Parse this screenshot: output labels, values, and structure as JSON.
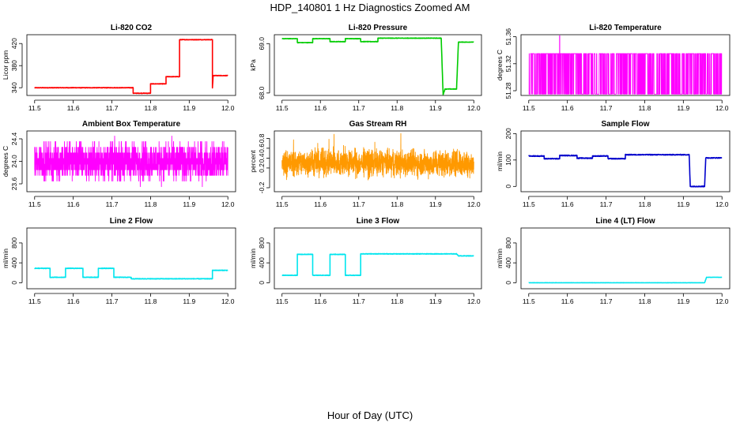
{
  "figure": {
    "title": "HDP_140801  1 Hz Diagnostics Zoomed AM",
    "xlabel": "Hour of Day (UTC)"
  },
  "chart_data": [
    {
      "type": "line",
      "title": "Li-820 CO2",
      "ylabel": "Licor ppm",
      "color": "#ff0000",
      "xlim": [
        11.48,
        12.02
      ],
      "xticks": [
        "11.5",
        "11.6",
        "11.7",
        "11.8",
        "11.9",
        "12.0"
      ],
      "ylim": [
        326,
        436
      ],
      "yticks": [
        "340",
        "380",
        "420"
      ],
      "noise": 0.4,
      "series": [
        {
          "x": 11.5,
          "y": 340
        },
        {
          "x": 11.755,
          "y": 340
        },
        {
          "x": 11.755,
          "y": 330
        },
        {
          "x": 11.8,
          "y": 330
        },
        {
          "x": 11.8,
          "y": 347
        },
        {
          "x": 11.84,
          "y": 347
        },
        {
          "x": 11.84,
          "y": 360
        },
        {
          "x": 11.875,
          "y": 360
        },
        {
          "x": 11.875,
          "y": 427
        },
        {
          "x": 11.96,
          "y": 427
        },
        {
          "x": 11.96,
          "y": 340
        },
        {
          "x": 11.962,
          "y": 362
        },
        {
          "x": 12.0,
          "y": 362
        }
      ]
    },
    {
      "type": "line",
      "title": "Li-820 Pressure",
      "ylabel": "kPa",
      "color": "#00cc00",
      "xlim": [
        11.48,
        12.02
      ],
      "xticks": [
        "11.5",
        "11.6",
        "11.7",
        "11.8",
        "11.9",
        "12.0"
      ],
      "ylim": [
        67.95,
        69.18
      ],
      "yticks": [
        "68.0",
        "69.0"
      ],
      "noise": 0.004,
      "series": [
        {
          "x": 11.5,
          "y": 69.1
        },
        {
          "x": 11.54,
          "y": 69.1
        },
        {
          "x": 11.54,
          "y": 69.02
        },
        {
          "x": 11.58,
          "y": 69.02
        },
        {
          "x": 11.58,
          "y": 69.1
        },
        {
          "x": 11.625,
          "y": 69.1
        },
        {
          "x": 11.625,
          "y": 69.04
        },
        {
          "x": 11.665,
          "y": 69.04
        },
        {
          "x": 11.665,
          "y": 69.1
        },
        {
          "x": 11.705,
          "y": 69.1
        },
        {
          "x": 11.705,
          "y": 69.04
        },
        {
          "x": 11.75,
          "y": 69.04
        },
        {
          "x": 11.75,
          "y": 69.11
        },
        {
          "x": 11.915,
          "y": 69.11
        },
        {
          "x": 11.92,
          "y": 67.97
        },
        {
          "x": 11.925,
          "y": 68.08
        },
        {
          "x": 11.955,
          "y": 68.08
        },
        {
          "x": 11.96,
          "y": 69.03
        },
        {
          "x": 12.0,
          "y": 69.03
        }
      ]
    },
    {
      "type": "line",
      "title": "Li-820 Temperature",
      "ylabel": "degrees C",
      "color": "#ff00ff",
      "xlim": [
        11.48,
        12.02
      ],
      "xticks": [
        "11.5",
        "11.6",
        "11.7",
        "11.8",
        "11.9",
        "12.0"
      ],
      "ylim": [
        51.273,
        51.363
      ],
      "yticks": [
        "51.28",
        "51.32",
        "51.36"
      ],
      "signal": "binary",
      "levels": [
        51.275,
        51.335
      ],
      "spike": {
        "x": 11.58,
        "y": 51.362
      }
    },
    {
      "type": "line",
      "title": "Ambient Box Temperature",
      "ylabel": "degrees C",
      "color": "#ff00ff",
      "xlim": [
        11.48,
        12.02
      ],
      "xticks": [
        "11.5",
        "11.6",
        "11.7",
        "11.8",
        "11.9",
        "12.0"
      ],
      "ylim": [
        23.46,
        24.54
      ],
      "yticks": [
        "23.6",
        "24.0",
        "24.4"
      ],
      "signal": "levels",
      "levels": [
        23.55,
        23.65,
        23.75,
        23.85,
        23.95,
        24.05,
        24.15,
        24.25,
        24.35,
        24.45
      ]
    },
    {
      "type": "line",
      "title": "Gas Stream RH",
      "ylabel": "percent",
      "color": "#ff9900",
      "xlim": [
        11.48,
        12.02
      ],
      "xticks": [
        "11.5",
        "11.6",
        "11.7",
        "11.8",
        "11.9",
        "12.0"
      ],
      "ylim": [
        -0.28,
        0.95
      ],
      "yticks": [
        "-0.2",
        "0.2",
        "0.4",
        "0.6",
        "0.8"
      ],
      "signal": "noise",
      "mean": 0.3,
      "spread": 0.2
    },
    {
      "type": "line",
      "title": "Sample Flow",
      "ylabel": "ml/min",
      "color": "#0000cc",
      "xlim": [
        11.48,
        12.02
      ],
      "xticks": [
        "11.5",
        "11.6",
        "11.7",
        "11.8",
        "11.9",
        "12.0"
      ],
      "ylim": [
        -20,
        210
      ],
      "yticks": [
        "0",
        "100",
        "200"
      ],
      "noise": 1.5,
      "series": [
        {
          "x": 11.5,
          "y": 115
        },
        {
          "x": 11.54,
          "y": 115
        },
        {
          "x": 11.54,
          "y": 105
        },
        {
          "x": 11.58,
          "y": 105
        },
        {
          "x": 11.58,
          "y": 117
        },
        {
          "x": 11.625,
          "y": 117
        },
        {
          "x": 11.625,
          "y": 107
        },
        {
          "x": 11.665,
          "y": 107
        },
        {
          "x": 11.665,
          "y": 115
        },
        {
          "x": 11.705,
          "y": 115
        },
        {
          "x": 11.705,
          "y": 105
        },
        {
          "x": 11.75,
          "y": 105
        },
        {
          "x": 11.75,
          "y": 120
        },
        {
          "x": 11.915,
          "y": 120
        },
        {
          "x": 11.918,
          "y": 0
        },
        {
          "x": 11.955,
          "y": 0
        },
        {
          "x": 11.958,
          "y": 108
        },
        {
          "x": 12.0,
          "y": 108
        }
      ]
    },
    {
      "type": "line",
      "title": "Line 2 Flow",
      "ylabel": "ml/min",
      "color": "#00e5ee",
      "xlim": [
        11.48,
        12.02
      ],
      "xticks": [
        "11.5",
        "11.6",
        "11.7",
        "11.8",
        "11.9",
        "12.0"
      ],
      "ylim": [
        -120,
        1100
      ],
      "yticks": [
        "0",
        "400",
        "800"
      ],
      "noise": 5,
      "series": [
        {
          "x": 11.5,
          "y": 290
        },
        {
          "x": 11.54,
          "y": 290
        },
        {
          "x": 11.54,
          "y": 110
        },
        {
          "x": 11.58,
          "y": 110
        },
        {
          "x": 11.58,
          "y": 290
        },
        {
          "x": 11.625,
          "y": 290
        },
        {
          "x": 11.625,
          "y": 110
        },
        {
          "x": 11.665,
          "y": 110
        },
        {
          "x": 11.665,
          "y": 290
        },
        {
          "x": 11.705,
          "y": 290
        },
        {
          "x": 11.705,
          "y": 110
        },
        {
          "x": 11.75,
          "y": 110
        },
        {
          "x": 11.75,
          "y": 80
        },
        {
          "x": 11.96,
          "y": 80
        },
        {
          "x": 11.96,
          "y": 250
        },
        {
          "x": 12.0,
          "y": 250
        }
      ]
    },
    {
      "type": "line",
      "title": "Line 3 Flow",
      "ylabel": "ml/min",
      "color": "#00e5ee",
      "xlim": [
        11.48,
        12.02
      ],
      "xticks": [
        "11.5",
        "11.6",
        "11.7",
        "11.8",
        "11.9",
        "12.0"
      ],
      "ylim": [
        -120,
        1100
      ],
      "yticks": [
        "0",
        "400",
        "800"
      ],
      "noise": 5,
      "series": [
        {
          "x": 11.5,
          "y": 150
        },
        {
          "x": 11.54,
          "y": 150
        },
        {
          "x": 11.54,
          "y": 570
        },
        {
          "x": 11.58,
          "y": 570
        },
        {
          "x": 11.58,
          "y": 150
        },
        {
          "x": 11.625,
          "y": 150
        },
        {
          "x": 11.625,
          "y": 570
        },
        {
          "x": 11.665,
          "y": 570
        },
        {
          "x": 11.665,
          "y": 150
        },
        {
          "x": 11.705,
          "y": 150
        },
        {
          "x": 11.705,
          "y": 580
        },
        {
          "x": 11.955,
          "y": 580
        },
        {
          "x": 11.96,
          "y": 540
        },
        {
          "x": 12.0,
          "y": 540
        }
      ]
    },
    {
      "type": "line",
      "title": "Line 4 (LT) Flow",
      "ylabel": "ml/min",
      "color": "#00e5ee",
      "xlim": [
        11.48,
        12.02
      ],
      "xticks": [
        "11.5",
        "11.6",
        "11.7",
        "11.8",
        "11.9",
        "12.0"
      ],
      "ylim": [
        -120,
        1100
      ],
      "yticks": [
        "0",
        "400",
        "800"
      ],
      "noise": 2,
      "series": [
        {
          "x": 11.5,
          "y": 0
        },
        {
          "x": 11.955,
          "y": 0
        },
        {
          "x": 11.96,
          "y": 110
        },
        {
          "x": 12.0,
          "y": 110
        }
      ]
    }
  ]
}
